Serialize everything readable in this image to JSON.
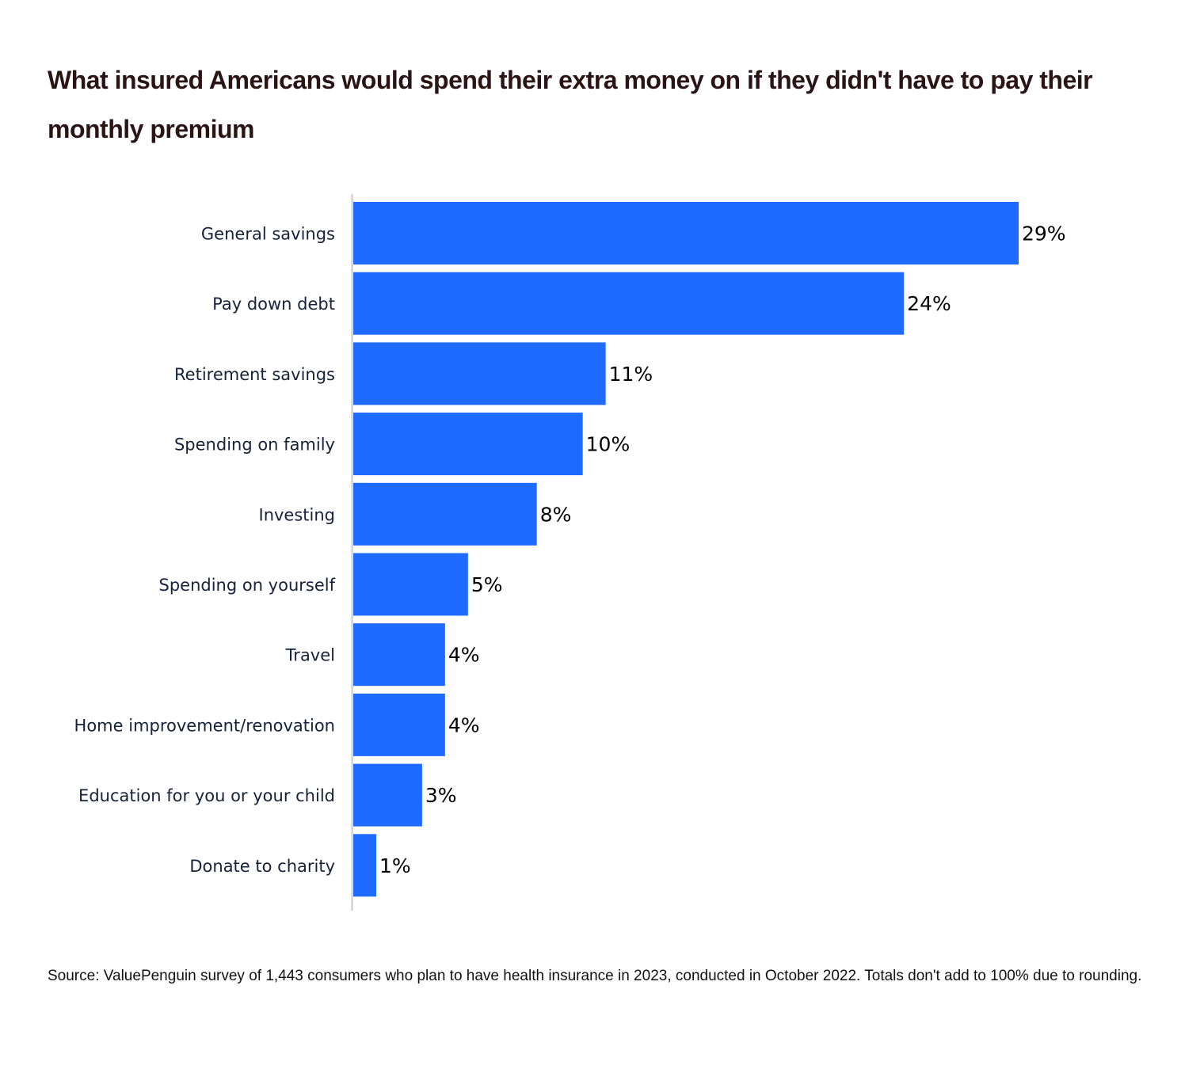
{
  "chart_data": {
    "type": "bar",
    "orientation": "horizontal",
    "title": "What insured Americans would spend their extra money on if they didn't have to pay their monthly premium",
    "categories": [
      "General savings",
      "Pay down debt",
      "Retirement savings",
      "Spending on family",
      "Investing",
      "Spending on yourself",
      "Travel",
      "Home improvement/renovation",
      "Education for you or your child",
      "Donate to charity"
    ],
    "values": [
      29,
      24,
      11,
      10,
      8,
      5,
      4,
      4,
      3,
      1
    ],
    "value_labels": [
      "29%",
      "24%",
      "11%",
      "10%",
      "8%",
      "5%",
      "4%",
      "4%",
      "3%",
      "1%"
    ],
    "xlim": [
      0,
      29
    ],
    "grid": false,
    "bar_color": "#1f6bff",
    "source": "Source: ValuePenguin survey of 1,443 consumers who plan to have health insurance in 2023, conducted in October 2022. Totals don't add to 100% due to rounding."
  }
}
